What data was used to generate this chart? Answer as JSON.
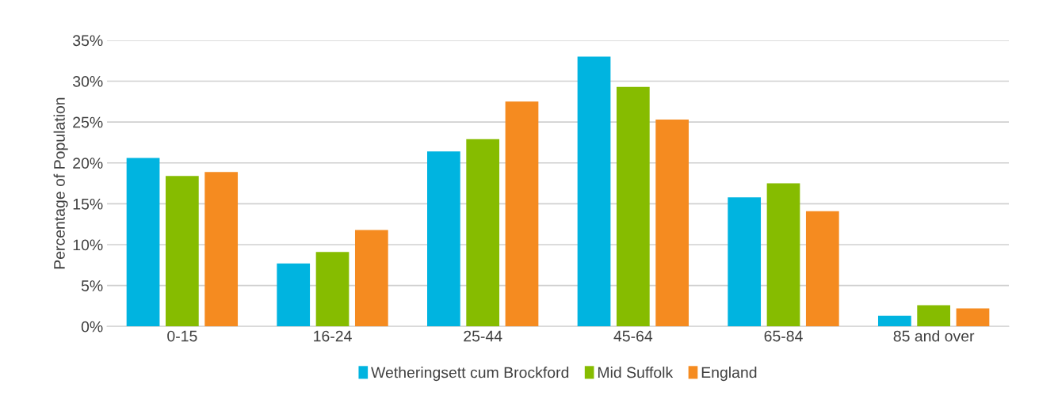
{
  "chart_data": {
    "type": "bar",
    "ylabel": "Percentage of Population",
    "categories": [
      "0-15",
      "16-24",
      "25-44",
      "45-64",
      "65-84",
      "85 and over"
    ],
    "series": [
      {
        "name": "Wetheringsett cum Brockford",
        "color": "#00b4e0",
        "values": [
          20.6,
          7.7,
          21.4,
          33.0,
          15.8,
          1.3
        ]
      },
      {
        "name": "Mid Suffolk",
        "color": "#86bc00",
        "values": [
          18.4,
          9.1,
          22.9,
          29.3,
          17.5,
          2.6
        ]
      },
      {
        "name": "England",
        "color": "#f58b20",
        "values": [
          18.9,
          11.8,
          27.5,
          25.3,
          14.1,
          2.2
        ]
      }
    ],
    "ylim": [
      0,
      35
    ],
    "yticks": [
      {
        "value": 0,
        "label": "0%"
      },
      {
        "value": 5,
        "label": "5%"
      },
      {
        "value": 10,
        "label": "10%"
      },
      {
        "value": 15,
        "label": "15%"
      },
      {
        "value": 20,
        "label": "20%"
      },
      {
        "value": 25,
        "label": "25%"
      },
      {
        "value": 30,
        "label": "30%"
      },
      {
        "value": 35,
        "label": "35%"
      }
    ],
    "grid": "y",
    "legend": "bottom"
  }
}
